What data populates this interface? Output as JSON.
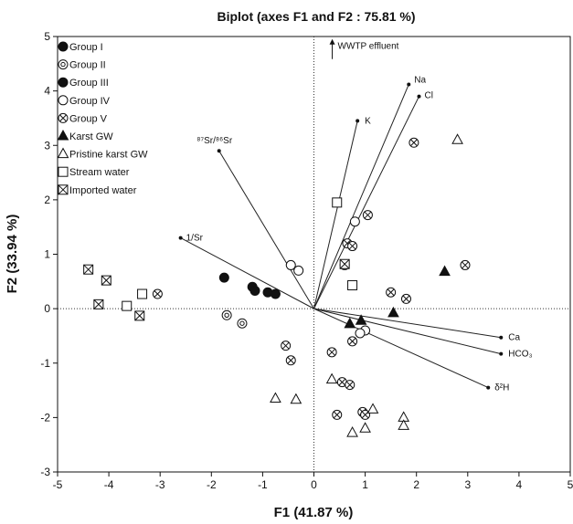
{
  "chart_data": {
    "type": "scatter",
    "title": "Biplot (axes F1 and F2 : 75.81 %)",
    "xlabel": "F1 (41.87 %)",
    "ylabel": "F2 (33.94 %)",
    "xlim": [
      -5,
      5
    ],
    "ylim": [
      -3,
      5
    ],
    "xticks": [
      "-5",
      "-4",
      "-3",
      "-2",
      "-1",
      "0",
      "1",
      "2",
      "3",
      "4",
      "5"
    ],
    "yticks": [
      "-3",
      "-2",
      "-1",
      "0",
      "1",
      "2",
      "3",
      "4",
      "5"
    ],
    "legend_position": "top-left",
    "series": [
      {
        "name": "Group I",
        "marker": "filled-circle",
        "points": []
      },
      {
        "name": "Group II",
        "marker": "circle-bullseye",
        "points": [
          [
            -1.7,
            -0.12
          ],
          [
            -1.4,
            -0.27
          ]
        ]
      },
      {
        "name": "Group III",
        "marker": "filled-circle",
        "points": [
          [
            -1.75,
            0.57
          ],
          [
            -1.2,
            0.4
          ],
          [
            -1.15,
            0.33
          ],
          [
            -0.9,
            0.3
          ],
          [
            -0.75,
            0.27
          ]
        ]
      },
      {
        "name": "Group IV",
        "marker": "open-circle",
        "points": [
          [
            -0.45,
            0.8
          ],
          [
            -0.3,
            0.7
          ],
          [
            0.8,
            1.6
          ],
          [
            1.0,
            -0.4
          ],
          [
            0.9,
            -0.45
          ]
        ]
      },
      {
        "name": "Group V",
        "marker": "circle-cross",
        "points": [
          [
            -3.05,
            0.27
          ],
          [
            -0.55,
            -0.68
          ],
          [
            -0.45,
            -0.95
          ],
          [
            0.35,
            -0.8
          ],
          [
            0.55,
            -1.35
          ],
          [
            0.7,
            -1.4
          ],
          [
            0.75,
            -0.6
          ],
          [
            0.95,
            -1.9
          ],
          [
            1.0,
            -1.95
          ],
          [
            0.45,
            -1.95
          ],
          [
            0.6,
            0.8
          ],
          [
            0.65,
            1.2
          ],
          [
            0.75,
            1.15
          ],
          [
            1.05,
            1.72
          ],
          [
            1.5,
            0.3
          ],
          [
            1.8,
            0.18
          ],
          [
            1.95,
            3.05
          ],
          [
            2.95,
            0.8
          ]
        ]
      },
      {
        "name": "Karst GW",
        "marker": "filled-triangle",
        "points": [
          [
            0.7,
            -0.28
          ],
          [
            0.92,
            -0.22
          ],
          [
            1.55,
            -0.08
          ],
          [
            2.55,
            0.68
          ]
        ]
      },
      {
        "name": "Pristine karst GW",
        "marker": "open-triangle",
        "points": [
          [
            -0.75,
            -1.65
          ],
          [
            -0.35,
            -1.67
          ],
          [
            0.35,
            -1.3
          ],
          [
            0.75,
            -2.28
          ],
          [
            1.0,
            -2.2
          ],
          [
            1.15,
            -1.85
          ],
          [
            1.75,
            -2.0
          ],
          [
            1.75,
            -2.15
          ],
          [
            2.8,
            3.1
          ]
        ]
      },
      {
        "name": "Stream water",
        "marker": "open-square",
        "points": [
          [
            -3.65,
            0.05
          ],
          [
            -3.35,
            0.27
          ],
          [
            0.45,
            1.95
          ],
          [
            0.75,
            0.43
          ]
        ]
      },
      {
        "name": "Imported water",
        "marker": "square-cross",
        "points": [
          [
            -4.4,
            0.72
          ],
          [
            -4.05,
            0.52
          ],
          [
            -4.2,
            0.08
          ],
          [
            -3.4,
            -0.13
          ],
          [
            0.6,
            0.82
          ]
        ]
      }
    ],
    "vectors": [
      {
        "label": "87Sr/86Sr",
        "display": "⁸⁷Sr/⁸⁶Sr",
        "x": -1.85,
        "y": 2.9
      },
      {
        "label": "1/Sr",
        "display": "1/Sr",
        "x": -2.6,
        "y": 1.3
      },
      {
        "label": "K",
        "display": "K",
        "x": 0.85,
        "y": 3.45
      },
      {
        "label": "Na",
        "display": "Na",
        "x": 1.85,
        "y": 4.12
      },
      {
        "label": "Cl",
        "display": "Cl",
        "x": 2.05,
        "y": 3.9
      },
      {
        "label": "Ca",
        "display": "Ca",
        "x": 3.65,
        "y": -0.53
      },
      {
        "label": "HCO3",
        "display": "HCO₃",
        "x": 3.65,
        "y": -0.83
      },
      {
        "label": "δ2H",
        "display": "δ²H",
        "x": 3.4,
        "y": -1.45
      }
    ],
    "annotation": {
      "text": "WWTP effluent",
      "x": 0.5,
      "y": 4.82
    }
  }
}
